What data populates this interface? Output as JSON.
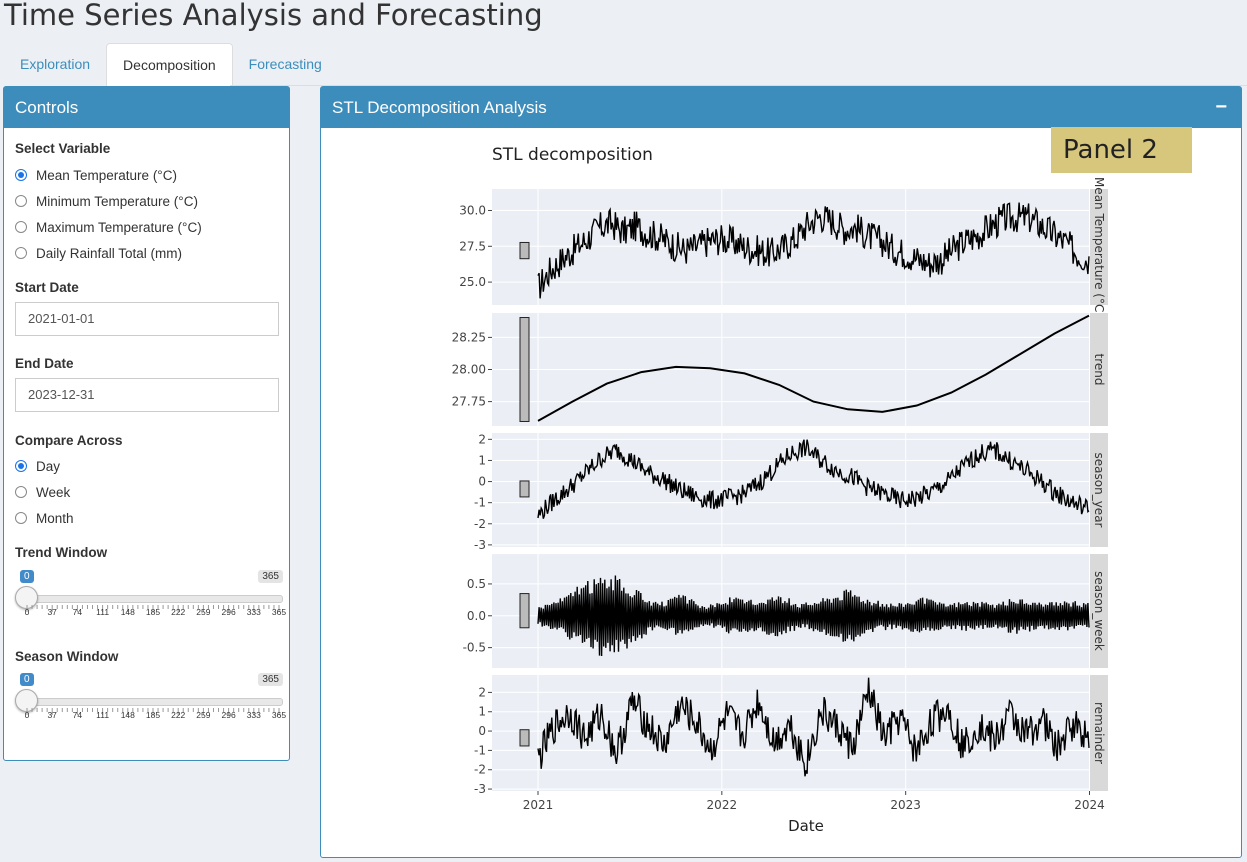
{
  "app_title": "Time Series Analysis and Forecasting",
  "tabs": [
    {
      "label": "Exploration"
    },
    {
      "label": "Decomposition"
    },
    {
      "label": "Forecasting"
    }
  ],
  "controls": {
    "title": "Controls",
    "select_variable_label": "Select Variable",
    "variables": [
      "Mean Temperature (°C)",
      "Minimum Temperature (°C)",
      "Maximum Temperature (°C)",
      "Daily Rainfall Total (mm)"
    ],
    "selected_variable": "Mean Temperature (°C)",
    "start_date_label": "Start Date",
    "start_date": "2021-01-01",
    "end_date_label": "End Date",
    "end_date": "2023-12-31",
    "compare_label": "Compare Across",
    "compare_options": [
      "Day",
      "Week",
      "Month"
    ],
    "compare_selected": "Day",
    "trend_window": {
      "label": "Trend Window",
      "min": "0",
      "max": "365",
      "value": "0",
      "ticks": [
        "0",
        "37",
        "74",
        "111",
        "148",
        "185",
        "222",
        "259",
        "296",
        "333",
        "365"
      ]
    },
    "season_window": {
      "label": "Season Window",
      "min": "0",
      "max": "365",
      "value": "0",
      "ticks": [
        "0",
        "37",
        "74",
        "111",
        "148",
        "185",
        "222",
        "259",
        "296",
        "333",
        "365"
      ]
    }
  },
  "analysis": {
    "title": "STL Decomposition Analysis",
    "collapse_symbol": "−",
    "panel_label": "Panel 2"
  },
  "chart_data": {
    "type": "line",
    "title": "STL decomposition",
    "xlabel": "Date",
    "x_ticks": [
      "2021",
      "2022",
      "2023",
      "2024"
    ],
    "x_range": [
      "2021-01-01",
      "2023-12-31"
    ],
    "facets": [
      {
        "name": "Mean Temperature (°C)",
        "yticks": [
          "30.0",
          "27.5",
          "25.0"
        ],
        "ytick_values": [
          30.0,
          27.5,
          25.0
        ],
        "ylim": [
          23.4,
          31.5
        ],
        "values": [
          24.6,
          25.8,
          26.6,
          27.3,
          28.0,
          28.8,
          29.1,
          28.5,
          28.9,
          28.4,
          28.1,
          27.6,
          27.2,
          27.5,
          27.9,
          28.0,
          27.8,
          27.4,
          27.2,
          27.0,
          27.4,
          28.0,
          29.0,
          29.6,
          29.3,
          28.7,
          28.8,
          28.2,
          27.9,
          27.3,
          27.0,
          26.6,
          26.3,
          26.6,
          27.3,
          27.9,
          28.3,
          28.9,
          29.4,
          29.5,
          29.5,
          29.0,
          28.4,
          27.8,
          27.0,
          26.5
        ]
      },
      {
        "name": "trend",
        "yticks": [
          "28.25",
          "28.00",
          "27.75"
        ],
        "ytick_values": [
          28.25,
          28.0,
          27.75
        ],
        "ylim": [
          27.56,
          28.44
        ],
        "values": [
          27.6,
          27.75,
          27.89,
          27.98,
          28.02,
          28.01,
          27.97,
          27.88,
          27.75,
          27.69,
          27.67,
          27.72,
          27.82,
          27.96,
          28.12,
          28.28,
          28.42
        ]
      },
      {
        "name": "season_year",
        "yticks": [
          "2",
          "1",
          "0",
          "-1",
          "-2",
          "-3"
        ],
        "ytick_values": [
          2,
          1,
          0,
          -1,
          -2,
          -3
        ],
        "ylim": [
          -3.1,
          2.3
        ],
        "values": [
          -1.6,
          -0.9,
          -0.3,
          0.4,
          1.1,
          1.5,
          1.0,
          0.4,
          0.1,
          -0.4,
          -0.7,
          -0.9,
          -0.8,
          -0.6,
          -0.1,
          0.6,
          1.3,
          1.6,
          1.0,
          0.5,
          0.2,
          -0.3,
          -0.6,
          -0.9,
          -0.8,
          -0.5,
          0.0,
          0.7,
          1.3,
          1.5,
          1.0,
          0.5,
          0.0,
          -0.6,
          -1.0,
          -1.3
        ]
      },
      {
        "name": "season_week",
        "yticks": [
          "0.5",
          "0.0",
          "-0.5"
        ],
        "ytick_values": [
          0.5,
          0.0,
          -0.5
        ],
        "ylim": [
          -0.82,
          0.97
        ],
        "values": [
          0.15,
          0.3,
          0.55,
          0.7,
          0.45,
          0.2,
          0.35,
          0.15,
          0.3,
          0.25,
          0.35,
          0.2,
          0.3,
          0.45,
          0.25,
          0.2,
          0.3,
          0.2,
          0.25,
          0.2,
          0.3,
          0.2,
          0.25,
          0.2
        ]
      },
      {
        "name": "remainder",
        "yticks": [
          "2",
          "1",
          "0",
          "-1",
          "-2",
          "-3"
        ],
        "ytick_values": [
          2,
          1,
          0,
          -1,
          -2,
          -3
        ],
        "ylim": [
          -3.1,
          2.9
        ],
        "values": [
          -1.5,
          0.2,
          1.0,
          -0.4,
          0.9,
          -1.2,
          1.5,
          0.3,
          -0.8,
          1.3,
          0.5,
          -1.0,
          0.8,
          -0.3,
          1.6,
          -0.6,
          0.4,
          -1.7,
          1.0,
          0.2,
          -0.9,
          2.1,
          -0.4,
          0.7,
          -1.1,
          0.5,
          1.2,
          -0.8,
          0.3,
          -0.5,
          0.9,
          -0.2,
          0.6,
          -0.9,
          0.4,
          -0.3
        ]
      }
    ]
  }
}
